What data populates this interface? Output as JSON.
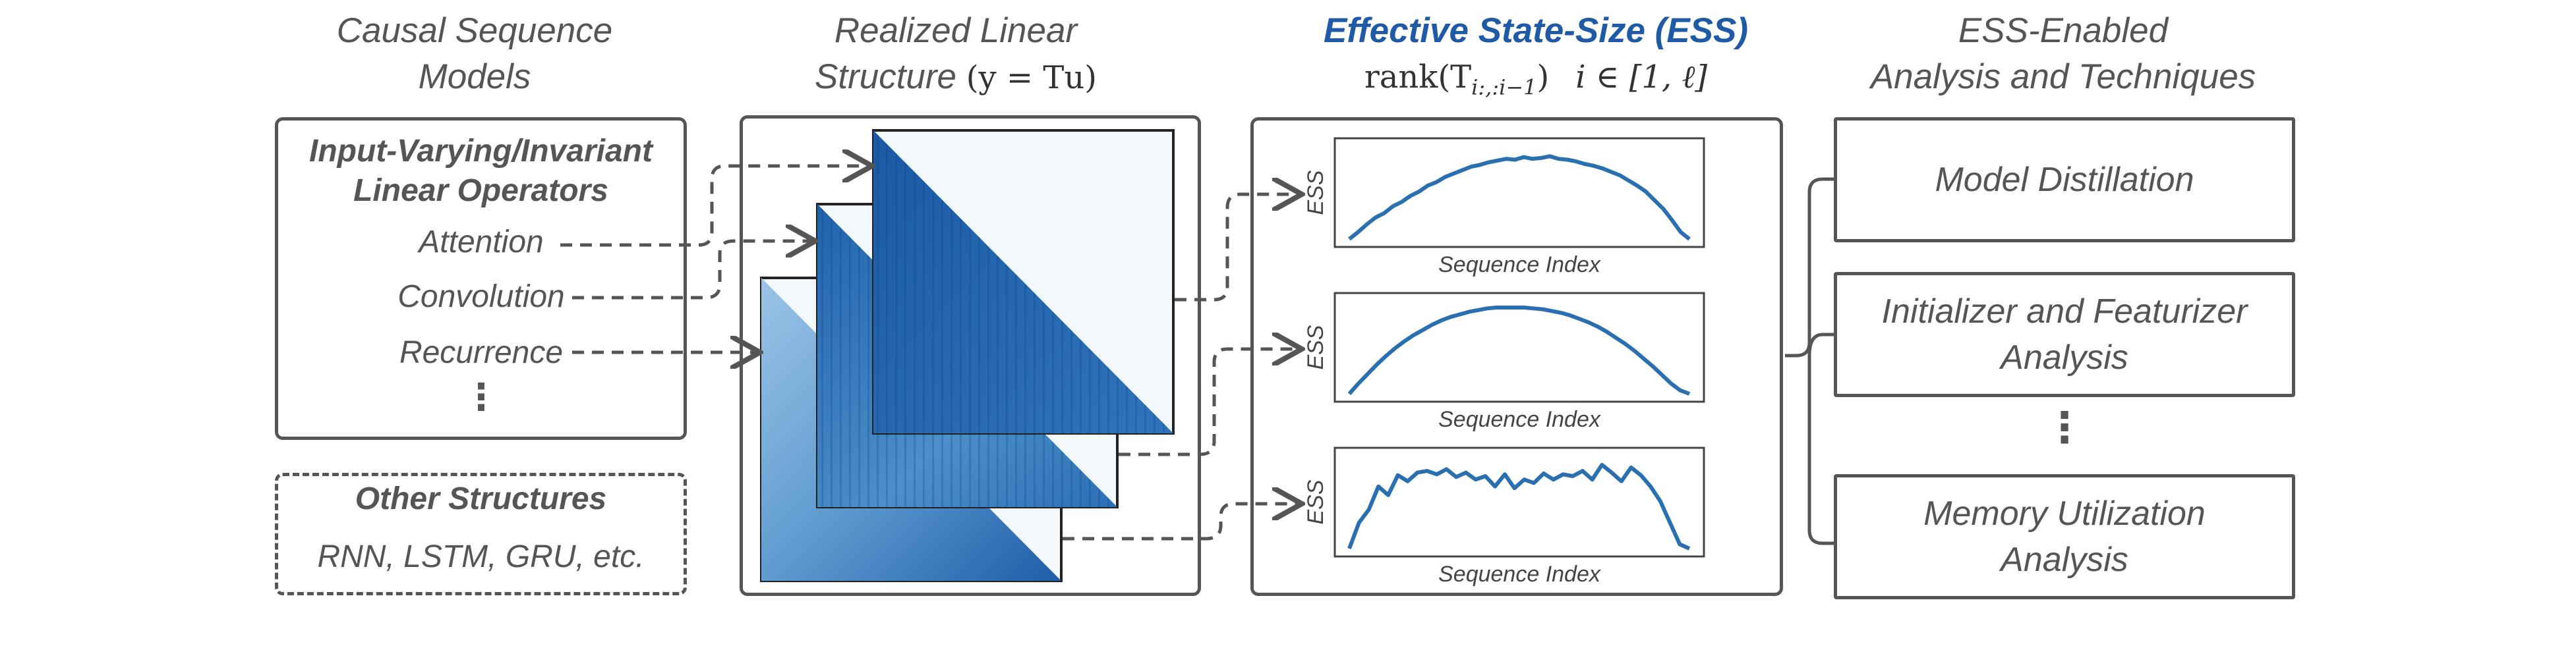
{
  "headers": {
    "col1": [
      "Causal Sequence",
      "Models"
    ],
    "col2_line1": "Realized Linear",
    "col2_line2_prefix": "Structure ",
    "col2_math": "(y = Tu)",
    "col3_title": "Effective State-Size (ESS)",
    "col3_formula_rank": "rank(T",
    "col3_formula_sub": "i:,:i−1",
    "col3_formula_close": ")",
    "col3_formula_range": "i ∈ [1, ℓ]",
    "col4": [
      "ESS-Enabled",
      "Analysis and Techniques"
    ]
  },
  "models": {
    "operators_title": [
      "Input-Varying/Invariant",
      "Linear Operators"
    ],
    "items": [
      "Attention",
      "Convolution",
      "Recurrence"
    ],
    "ellipsis": "⋮",
    "other_title": "Other Structures",
    "other_items": "RNN, LSTM, GRU, etc."
  },
  "ess_plots": [
    {
      "ylabel": "ESS",
      "xlabel": "Sequence Index",
      "profile": [
        0.0,
        0.08,
        0.17,
        0.25,
        0.3,
        0.38,
        0.43,
        0.5,
        0.55,
        0.62,
        0.66,
        0.72,
        0.76,
        0.8,
        0.84,
        0.86,
        0.89,
        0.91,
        0.93,
        0.92,
        0.95,
        0.93,
        0.94,
        0.96,
        0.93,
        0.92,
        0.9,
        0.87,
        0.85,
        0.82,
        0.78,
        0.74,
        0.68,
        0.62,
        0.55,
        0.45,
        0.35,
        0.22,
        0.08,
        0.0
      ]
    },
    {
      "ylabel": "ESS",
      "xlabel": "Sequence Index",
      "profile": [
        0.0,
        0.12,
        0.23,
        0.34,
        0.44,
        0.53,
        0.61,
        0.68,
        0.74,
        0.8,
        0.85,
        0.89,
        0.92,
        0.95,
        0.97,
        0.99,
        1.0,
        1.0,
        1.0,
        1.0,
        0.99,
        0.98,
        0.96,
        0.94,
        0.91,
        0.87,
        0.83,
        0.78,
        0.72,
        0.65,
        0.58,
        0.5,
        0.41,
        0.32,
        0.22,
        0.12,
        0.04,
        0.0
      ]
    },
    {
      "ylabel": "ESS",
      "xlabel": "Sequence Index",
      "profile": [
        0.0,
        0.3,
        0.45,
        0.72,
        0.62,
        0.85,
        0.78,
        0.88,
        0.9,
        0.86,
        0.92,
        0.83,
        0.88,
        0.8,
        0.84,
        0.72,
        0.86,
        0.7,
        0.8,
        0.76,
        0.87,
        0.8,
        0.86,
        0.84,
        0.9,
        0.8,
        0.97,
        0.88,
        0.78,
        0.94,
        0.85,
        0.72,
        0.55,
        0.3,
        0.05,
        0.0
      ]
    }
  ],
  "techniques": [
    [
      "Model Distillation"
    ],
    [
      "Initializer and Featurizer",
      "Analysis"
    ],
    [
      "Memory Utilization",
      "Analysis"
    ]
  ],
  "techniques_ellipsis": "⋮",
  "colors": {
    "ess_blue": "#1f5aa6",
    "line_blue": "#2a6fb0",
    "border": "#555555",
    "matrix_light": "#f3f8fd"
  }
}
